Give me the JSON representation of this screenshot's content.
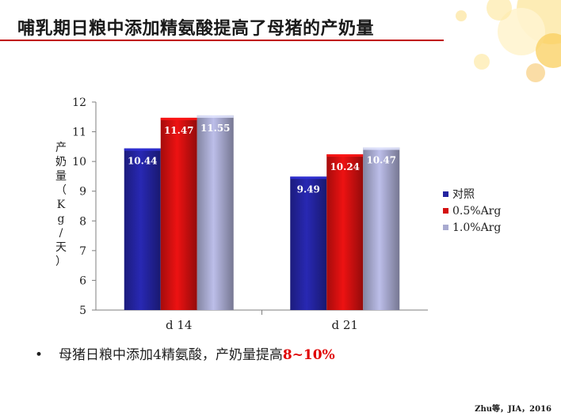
{
  "slide": {
    "title": "哺乳期日粮中添加精氨酸提高了母猪的产奶量",
    "bullet": {
      "marker": "•",
      "text": "母猪日粮中添加4精氨酸，产奶量提高",
      "highlight": "8~10%"
    },
    "citation": "Zhu等，JIA，2016",
    "colors": {
      "title_rule": "#c00000",
      "highlight": "#e00000"
    }
  },
  "chart_data": {
    "type": "bar",
    "title": "",
    "ylabel": "产奶量（Kg/天）",
    "xlabel": "",
    "ylim": [
      5,
      12
    ],
    "yticks": [
      5,
      6,
      7,
      8,
      9,
      10,
      11,
      12
    ],
    "categories": [
      "d 14",
      "d 21"
    ],
    "series": [
      {
        "name": "对照",
        "values": [
          10.44,
          9.49
        ],
        "color": "#2424a0"
      },
      {
        "name": "0.5%Arg",
        "values": [
          11.47,
          10.24
        ],
        "color": "#d41010"
      },
      {
        "name": "1.0%Arg",
        "values": [
          11.55,
          10.47
        ],
        "color": "#a8aad0"
      }
    ],
    "data_labels": true,
    "legend_position": "right",
    "grid": false
  }
}
